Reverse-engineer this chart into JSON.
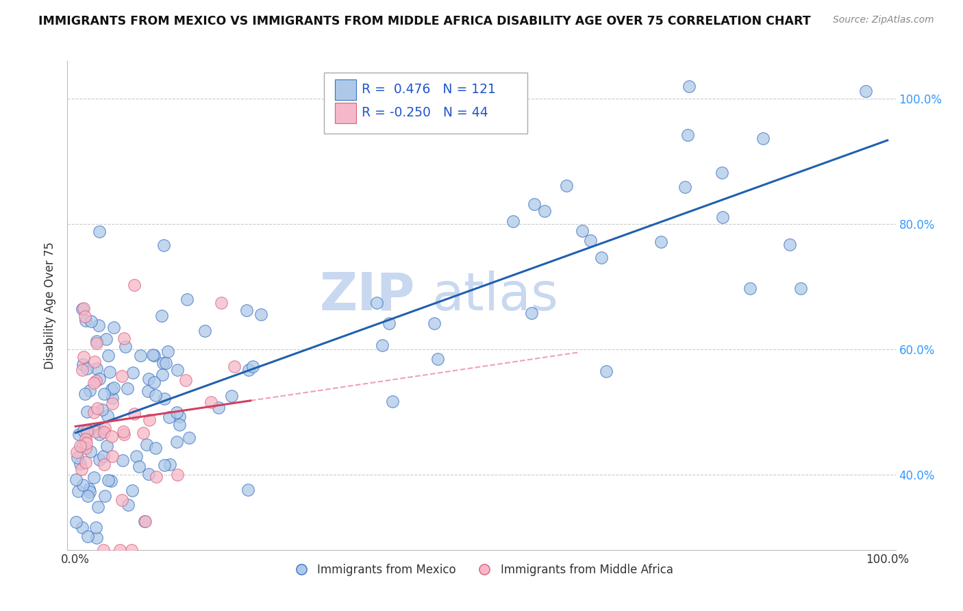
{
  "title": "IMMIGRANTS FROM MEXICO VS IMMIGRANTS FROM MIDDLE AFRICA DISABILITY AGE OVER 75 CORRELATION CHART",
  "source": "Source: ZipAtlas.com",
  "ylabel": "Disability Age Over 75",
  "watermark_zip": "ZIP",
  "watermark_atlas": "atlas",
  "legend_mexico_R": "0.476",
  "legend_mexico_N": "121",
  "legend_africa_R": "-0.250",
  "legend_africa_N": "44",
  "legend_label_mexico": "Immigrants from Mexico",
  "legend_label_africa": "Immigrants from Middle Africa",
  "blue_fill": "#aec9e8",
  "blue_edge": "#3a6fc4",
  "pink_fill": "#f5b8c8",
  "pink_edge": "#d9607a",
  "blue_line": "#2060b0",
  "pink_line": "#d04060",
  "pink_dash": "#f0a0b8",
  "background_color": "#ffffff",
  "grid_color": "#cccccc",
  "ytick_color": "#3399ff",
  "title_color": "#111111",
  "source_color": "#888888",
  "watermark_color": "#c8d8f0",
  "seed": 12345,
  "n_mexico": 121,
  "n_africa": 44,
  "R_mexico": 0.476,
  "R_africa": -0.25,
  "xmin": 0.0,
  "xmax": 1.0,
  "ymin": 0.28,
  "ymax": 1.06,
  "yticks": [
    0.4,
    0.6,
    0.8,
    1.0
  ],
  "ytick_labels": [
    "40.0%",
    "60.0%",
    "80.0%",
    "100.0%"
  ],
  "xtick_labels": [
    "0.0%",
    "100.0%"
  ]
}
